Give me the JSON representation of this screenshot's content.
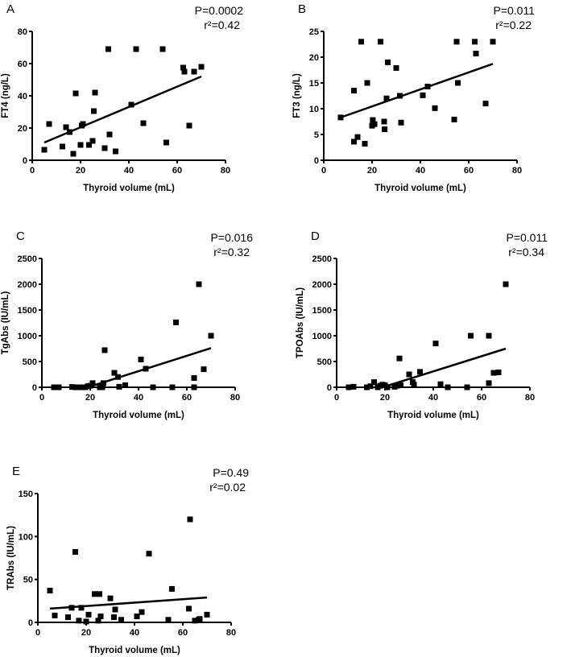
{
  "chart_data": [
    {
      "type": "scatter",
      "panel": "A",
      "xlabel": "Thyroid volume (mL)",
      "ylabel": "FT4 (ng/L)",
      "xlim": [
        0,
        80
      ],
      "ylim": [
        0,
        80
      ],
      "xticks": [
        0,
        20,
        40,
        60,
        80
      ],
      "yticks": [
        0,
        20,
        40,
        60,
        80
      ],
      "p": "P=0.0002",
      "r2": "r²=0.42",
      "points": [
        [
          5,
          6.5
        ],
        [
          7,
          22.5
        ],
        [
          12.5,
          8.5
        ],
        [
          14,
          20.5
        ],
        [
          15.5,
          17.5
        ],
        [
          17,
          4
        ],
        [
          18,
          41.5
        ],
        [
          20,
          9.5
        ],
        [
          20.5,
          21.5
        ],
        [
          21,
          22.5
        ],
        [
          23.5,
          9.5
        ],
        [
          25,
          12
        ],
        [
          25.5,
          30.5
        ],
        [
          26,
          42
        ],
        [
          30,
          7.5
        ],
        [
          31.5,
          69
        ],
        [
          32,
          16
        ],
        [
          34.5,
          5.5
        ],
        [
          41,
          34.5
        ],
        [
          43,
          69
        ],
        [
          46,
          23
        ],
        [
          54,
          69
        ],
        [
          55.5,
          11
        ],
        [
          62.5,
          57.5
        ],
        [
          63,
          55
        ],
        [
          65,
          21.5
        ],
        [
          67,
          55
        ],
        [
          70,
          58
        ]
      ],
      "fit": [
        [
          5,
          11
        ],
        [
          70,
          52
        ]
      ]
    },
    {
      "type": "scatter",
      "panel": "B",
      "xlabel": "Thyroid volume (mL)",
      "ylabel": "FT3 (ng/L)",
      "xlim": [
        0,
        80
      ],
      "ylim": [
        0,
        25
      ],
      "xticks": [
        0,
        20,
        40,
        60,
        80
      ],
      "yticks": [
        0,
        5,
        10,
        15,
        20,
        25
      ],
      "p": "P=0.011",
      "r2": "r²=0.22",
      "points": [
        [
          7,
          8.3
        ],
        [
          12.5,
          3.6
        ],
        [
          12.5,
          13.5
        ],
        [
          14,
          4.5
        ],
        [
          15.5,
          23
        ],
        [
          17,
          3.2
        ],
        [
          18,
          15
        ],
        [
          20,
          6.7
        ],
        [
          20.3,
          7.8
        ],
        [
          21,
          7
        ],
        [
          23.5,
          23
        ],
        [
          25,
          7.5
        ],
        [
          25.2,
          6
        ],
        [
          26,
          12
        ],
        [
          26.5,
          19
        ],
        [
          30,
          17.9
        ],
        [
          31.5,
          12.5
        ],
        [
          32,
          7.3
        ],
        [
          41,
          12.6
        ],
        [
          43,
          14.3
        ],
        [
          46,
          10.1
        ],
        [
          54,
          7.9
        ],
        [
          55,
          23
        ],
        [
          55.5,
          15
        ],
        [
          62.5,
          23
        ],
        [
          63,
          20.7
        ],
        [
          67,
          11
        ],
        [
          70,
          23
        ]
      ],
      "fit": [
        [
          7,
          8.3
        ],
        [
          70,
          18.7
        ]
      ]
    },
    {
      "type": "scatter",
      "panel": "C",
      "xlabel": "Thyroid volume (mL)",
      "ylabel": "TgAbs (IU/mL)",
      "xlim": [
        0,
        80
      ],
      "ylim": [
        0,
        2500
      ],
      "xticks": [
        0,
        20,
        40,
        60,
        80
      ],
      "yticks": [
        0,
        500,
        1000,
        1500,
        2000,
        2500
      ],
      "p": "P=0.016",
      "r2": "r²=0.32",
      "points": [
        [
          5,
          0
        ],
        [
          6,
          0
        ],
        [
          7,
          0
        ],
        [
          12.5,
          5
        ],
        [
          14,
          0
        ],
        [
          15.5,
          0
        ],
        [
          17,
          0
        ],
        [
          18,
          0
        ],
        [
          19,
          20
        ],
        [
          20,
          30
        ],
        [
          21,
          80
        ],
        [
          24,
          0
        ],
        [
          25,
          0
        ],
        [
          25.5,
          80
        ],
        [
          26,
          720
        ],
        [
          30,
          280
        ],
        [
          31.5,
          200
        ],
        [
          32,
          10
        ],
        [
          34.5,
          40
        ],
        [
          41,
          540
        ],
        [
          43,
          360
        ],
        [
          46,
          0
        ],
        [
          54,
          0
        ],
        [
          55.5,
          1260
        ],
        [
          63,
          180
        ],
        [
          63,
          0
        ],
        [
          65,
          2000
        ],
        [
          67,
          350
        ],
        [
          70,
          1000
        ]
      ],
      "fit": [
        [
          19,
          0
        ],
        [
          70,
          760
        ]
      ]
    },
    {
      "type": "scatter",
      "panel": "D",
      "xlabel": "Thyroid volume (mL)",
      "ylabel": "TPOAbs (IU/mL)",
      "xlim": [
        0,
        80
      ],
      "ylim": [
        0,
        2500
      ],
      "xticks": [
        0,
        20,
        40,
        60,
        80
      ],
      "yticks": [
        0,
        500,
        1000,
        1500,
        2000,
        2500
      ],
      "p": "P=0.011",
      "r2": "r²=0.34",
      "points": [
        [
          5,
          0
        ],
        [
          7,
          10
        ],
        [
          12.5,
          0
        ],
        [
          14,
          20
        ],
        [
          15.5,
          100
        ],
        [
          17,
          0
        ],
        [
          18,
          30
        ],
        [
          19,
          50
        ],
        [
          20,
          40
        ],
        [
          21,
          0
        ],
        [
          24,
          10
        ],
        [
          25,
          30
        ],
        [
          26,
          560
        ],
        [
          26.5,
          40
        ],
        [
          30,
          250
        ],
        [
          31.5,
          100
        ],
        [
          32,
          50
        ],
        [
          34.5,
          300
        ],
        [
          41,
          850
        ],
        [
          43,
          60
        ],
        [
          46,
          0
        ],
        [
          54,
          0
        ],
        [
          55.5,
          1000
        ],
        [
          63,
          1000
        ],
        [
          63,
          80
        ],
        [
          65,
          280
        ],
        [
          67,
          290
        ],
        [
          70,
          2000
        ]
      ],
      "fit": [
        [
          19,
          0
        ],
        [
          70,
          750
        ]
      ]
    },
    {
      "type": "scatter",
      "panel": "E",
      "xlabel": "Thyroid volume (mL)",
      "ylabel": "TRAbs (IU/mL)",
      "xlim": [
        0,
        80
      ],
      "ylim": [
        0,
        150
      ],
      "xticks": [
        0,
        20,
        40,
        60,
        80
      ],
      "yticks": [
        0,
        50,
        100,
        150
      ],
      "p": "P=0.49",
      "r2": "r²=0.02",
      "points": [
        [
          5,
          37
        ],
        [
          7,
          8
        ],
        [
          12.5,
          6
        ],
        [
          14,
          17
        ],
        [
          15.5,
          82
        ],
        [
          17,
          2
        ],
        [
          18,
          17
        ],
        [
          20,
          1
        ],
        [
          21,
          9
        ],
        [
          23.5,
          33
        ],
        [
          25,
          2
        ],
        [
          25.5,
          33
        ],
        [
          26,
          7
        ],
        [
          30,
          28
        ],
        [
          31.5,
          6
        ],
        [
          32,
          15
        ],
        [
          34.5,
          3
        ],
        [
          41,
          7
        ],
        [
          43,
          12
        ],
        [
          46,
          80
        ],
        [
          54,
          3
        ],
        [
          55.5,
          39
        ],
        [
          62.5,
          16
        ],
        [
          63,
          120
        ],
        [
          65,
          2
        ],
        [
          66.5,
          3
        ],
        [
          67,
          4
        ],
        [
          70,
          9
        ]
      ],
      "fit": [
        [
          5,
          16
        ],
        [
          70,
          29
        ]
      ]
    }
  ]
}
